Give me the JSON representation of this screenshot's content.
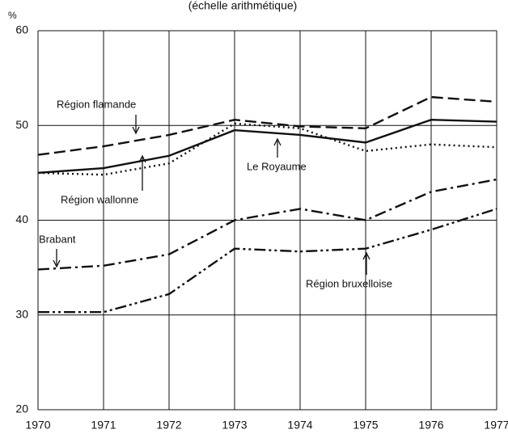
{
  "chart_data": {
    "type": "line",
    "title": "(échelle arithmétique)",
    "ylabel": "%",
    "x": [
      1970,
      1971,
      1972,
      1973,
      1974,
      1975,
      1976,
      1977
    ],
    "xlim": [
      1970,
      1977
    ],
    "xticks": [
      1970,
      1971,
      1972,
      1973,
      1974,
      1975,
      1976,
      1977
    ],
    "ylim": [
      20,
      60
    ],
    "yticks": [
      20,
      30,
      40,
      50,
      60
    ],
    "grid": true,
    "series": [
      {
        "name": "Région flamande",
        "color": "#111111",
        "dash": "dashed",
        "values": [
          46.9,
          47.8,
          49.0,
          50.6,
          49.9,
          49.7,
          53.0,
          52.5
        ]
      },
      {
        "name": "Le Royaume",
        "color": "#111111",
        "dash": "solid",
        "values": [
          45.0,
          45.5,
          46.8,
          49.5,
          49.0,
          48.2,
          50.6,
          50.4
        ]
      },
      {
        "name": "Région wallonne",
        "color": "#111111",
        "dash": "dotted",
        "values": [
          45.0,
          44.8,
          46.0,
          50.2,
          49.7,
          47.3,
          48.0,
          47.7
        ]
      },
      {
        "name": "Brabant",
        "color": "#111111",
        "dash": "dashdot",
        "values": [
          34.8,
          35.2,
          36.4,
          40.0,
          41.2,
          40.0,
          43.0,
          44.3
        ]
      },
      {
        "name": "Région bruxelloise",
        "color": "#111111",
        "dash": "dashdotdot",
        "values": [
          30.3,
          30.3,
          32.2,
          37.0,
          36.7,
          37.0,
          39.0,
          41.2
        ]
      }
    ]
  }
}
